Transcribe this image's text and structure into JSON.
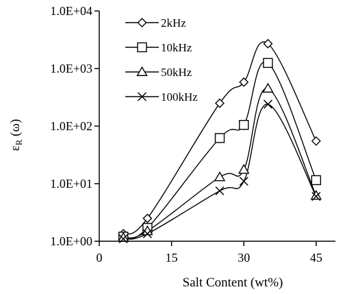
{
  "chart_data": {
    "type": "line",
    "title": "",
    "xlabel": "Salt Content (wt%)",
    "ylabel": "ε_R (ω)",
    "ylabel_main": "ε",
    "ylabel_sub": "R",
    "ylabel_rest": " (ω)",
    "x_scale": "linear",
    "y_scale": "log",
    "xlim": [
      0,
      49
    ],
    "ylim": [
      1,
      10000
    ],
    "x_ticks": [
      0,
      15,
      30,
      45
    ],
    "x_tick_labels": [
      "0",
      "15",
      "30",
      "45"
    ],
    "y_ticks": [
      1,
      10,
      100,
      1000,
      10000
    ],
    "y_tick_labels": [
      "1.0E+00",
      "1.0E+01",
      "1.0E+02",
      "1.0E+03",
      "1.0E+04"
    ],
    "grid": false,
    "legend_position": "top-left",
    "x": [
      5,
      10,
      25,
      30,
      35,
      45
    ],
    "series": [
      {
        "name": "2kHz",
        "marker": "diamond",
        "values": [
          1.35,
          2.5,
          250,
          580,
          2700,
          55
        ]
      },
      {
        "name": "10kHz",
        "marker": "square",
        "values": [
          1.2,
          1.7,
          62,
          105,
          1250,
          11.5
        ]
      },
      {
        "name": "50kHz",
        "marker": "triangle",
        "values": [
          1.15,
          1.5,
          13,
          17.5,
          450,
          6.2
        ]
      },
      {
        "name": "100kHz",
        "marker": "x",
        "values": [
          1.1,
          1.35,
          7.5,
          11,
          240,
          6.0
        ]
      }
    ]
  }
}
